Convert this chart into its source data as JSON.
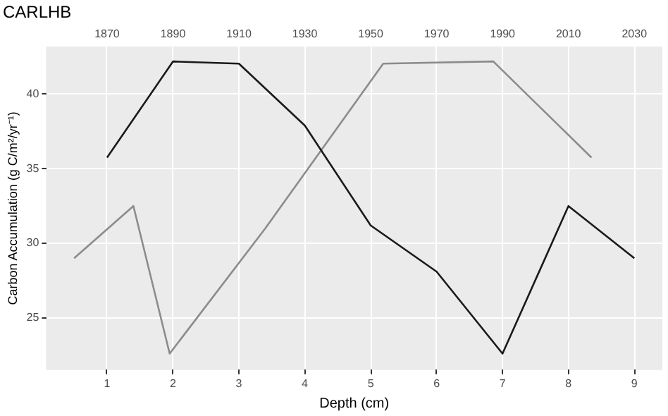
{
  "chart_data": {
    "type": "line",
    "title": "CARLHB",
    "xlabel": "Depth (cm)",
    "ylabel": "Carbon Accumulation (g C/m²/yr⁻¹)",
    "x": [
      1,
      2,
      3,
      4,
      5,
      6,
      7,
      8,
      9
    ],
    "series": [
      {
        "color": "#1a1a1a",
        "values": [
          35.75,
          42.2,
          42.05,
          37.9,
          31.2,
          28.1,
          22.6,
          32.5,
          29.0
        ]
      },
      {
        "color": "#8c8c8c",
        "x": [
          0.5,
          1.4,
          1.95,
          3.4,
          5.19,
          6.86,
          8.35
        ],
        "values": [
          29.0,
          32.5,
          22.6,
          31.0,
          42.05,
          42.2,
          35.75
        ]
      }
    ],
    "xlim": [
      0.075,
      9.425
    ],
    "xticks": [
      1,
      2,
      3,
      4,
      5,
      6,
      7,
      8,
      9
    ],
    "x2lim": [
      1851.5,
      2038.5
    ],
    "x2ticks": [
      1870,
      1890,
      1910,
      1930,
      1950,
      1970,
      1990,
      2010,
      2030
    ],
    "ylim": [
      21.5,
      43.2
    ],
    "yticks": [
      25,
      30,
      35,
      40
    ],
    "grid": true,
    "legend": false,
    "marker": "none",
    "line_style": "solid"
  }
}
